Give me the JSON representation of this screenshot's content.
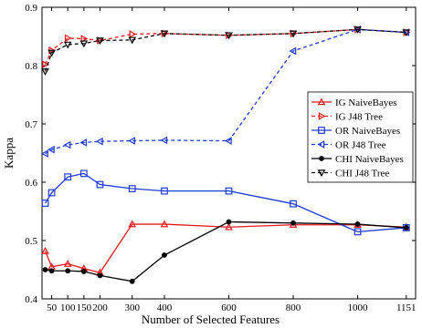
{
  "chart_data": {
    "type": "line",
    "title": "",
    "xlabel": "Number of Selected Features",
    "ylabel": "Kappa",
    "x": [
      30,
      50,
      100,
      150,
      200,
      300,
      400,
      600,
      800,
      1000,
      1151
    ],
    "x_ticks": [
      50,
      100,
      150,
      200,
      300,
      400,
      600,
      800,
      1000,
      1151
    ],
    "y_ticks": [
      0.4,
      0.5,
      0.6,
      0.7,
      0.8,
      0.9
    ],
    "xlim": [
      20,
      1180
    ],
    "ylim": [
      0.4,
      0.9
    ],
    "grid": false,
    "legend_position": "right",
    "series": [
      {
        "name": "IG NaiveBayes",
        "color": "#e41a1c",
        "marker": "triangle-up",
        "dash": "solid",
        "values": [
          0.482,
          0.455,
          0.46,
          0.452,
          0.445,
          0.528,
          0.528,
          0.523,
          0.527,
          0.527,
          0.523
        ]
      },
      {
        "name": "IG J48 Tree",
        "color": "#e41a1c",
        "marker": "triangle-right",
        "dash": "dashed",
        "values": [
          0.802,
          0.826,
          0.847,
          0.846,
          0.843,
          0.854,
          0.855,
          0.852,
          0.855,
          0.862,
          0.857
        ]
      },
      {
        "name": "OR NaiveBayes",
        "color": "#1f3bd6",
        "marker": "square",
        "dash": "solid",
        "values": [
          0.564,
          0.582,
          0.609,
          0.615,
          0.596,
          0.589,
          0.585,
          0.585,
          0.563,
          0.515,
          0.522
        ]
      },
      {
        "name": "OR J48 Tree",
        "color": "#1f3bd6",
        "marker": "triangle-left",
        "dash": "dashed",
        "values": [
          0.649,
          0.656,
          0.664,
          0.668,
          0.67,
          0.671,
          0.672,
          0.671,
          0.825,
          0.862,
          0.857
        ]
      },
      {
        "name": "CHI NaiveBayes",
        "color": "#000000",
        "marker": "dot",
        "dash": "solid",
        "values": [
          0.45,
          0.448,
          0.448,
          0.447,
          0.44,
          0.43,
          0.475,
          0.532,
          0.53,
          0.528,
          0.522
        ]
      },
      {
        "name": "CHI J48 Tree",
        "color": "#000000",
        "marker": "triangle-down",
        "dash": "dashed",
        "values": [
          0.79,
          0.822,
          0.836,
          0.838,
          0.843,
          0.844,
          0.855,
          0.852,
          0.855,
          0.862,
          0.857
        ]
      }
    ]
  }
}
